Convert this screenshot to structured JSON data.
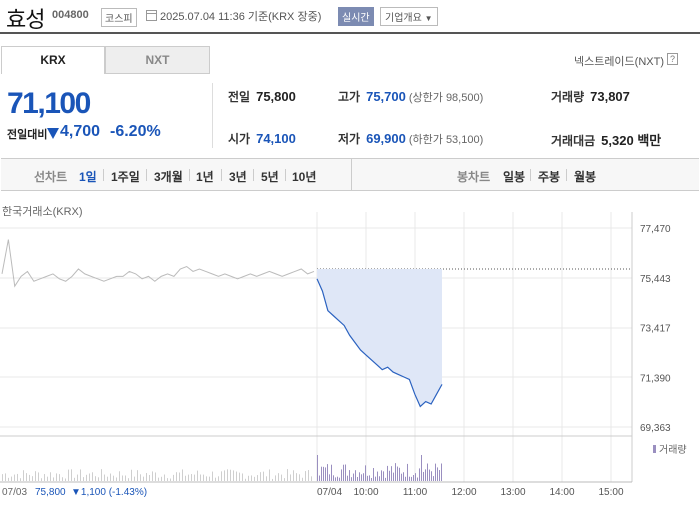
{
  "header": {
    "stock_name": "효성",
    "stock_code": "004800",
    "market": "코스피",
    "datetime": "2025.07.04 11:36 기준(KRX 장중)",
    "realtime_badge": "실시간",
    "company_button": "기업개요"
  },
  "tabs": [
    {
      "label": "KRX",
      "active": true
    },
    {
      "label": "NXT",
      "active": false
    }
  ],
  "nxt_link": "넥스트레이드(NXT)",
  "quote": {
    "price": "71,100",
    "change_label": "전일대비",
    "change": "4,700",
    "change_pct": "-6.20%"
  },
  "stats": {
    "prev_close": {
      "label": "전일",
      "value": "75,800"
    },
    "high": {
      "label": "고가",
      "value": "75,700",
      "sub": "(상한가 98,500)"
    },
    "volume": {
      "label": "거래량",
      "value": "73,807"
    },
    "open": {
      "label": "시가",
      "value": "74,100"
    },
    "low": {
      "label": "저가",
      "value": "69,900",
      "sub": "(하한가 53,100)"
    },
    "amount": {
      "label": "거래대금",
      "value": "5,320 백만"
    }
  },
  "period_bar": {
    "line_label": "선차트",
    "line_items": [
      "1일",
      "1주일",
      "3개월",
      "1년",
      "3년",
      "5년",
      "10년"
    ],
    "active": "1일",
    "bar_label": "봉차트",
    "bar_items": [
      "일봉",
      "주봉",
      "월봉"
    ]
  },
  "chart_data": {
    "type": "line",
    "exchange_label": "한국거래소(KRX)",
    "y_ticks": [
      "77,470",
      "75,443",
      "73,417",
      "71,390",
      "69,363"
    ],
    "ylim": [
      69363,
      77470
    ],
    "reference_price": 75800,
    "volume_label": "거래량",
    "x_ticks": [
      "07/03",
      "07/04",
      "10:00",
      "11:00",
      "12:00",
      "13:00",
      "14:00",
      "15:00"
    ],
    "footer_prev": "07/03",
    "footer_prev_close": "75,800",
    "footer_change": "▼1,100 (-1.43%)",
    "prev_day_series": [
      75600,
      77000,
      75100,
      75500,
      75700,
      75300,
      75400,
      75500,
      75600,
      75400,
      75300,
      75500,
      75800,
      75600,
      75500,
      75400,
      75300,
      75400,
      75500,
      75500,
      75700,
      75600,
      75400,
      75500,
      75300,
      75500,
      75600,
      75500,
      75800,
      75900,
      75700,
      75800,
      75700,
      75600,
      75500,
      75600,
      75500,
      75400,
      75500,
      75600,
      75500,
      75600,
      75700,
      75600,
      75500,
      75600,
      75700,
      75800,
      75600,
      75700
    ],
    "today_series": [
      75400,
      74900,
      74100,
      73900,
      73700,
      73500,
      73100,
      72800,
      72500,
      72300,
      72100,
      71900,
      71700,
      71800,
      71600,
      71500,
      71400,
      71300,
      70700,
      70200,
      70400,
      70300,
      70700,
      71100
    ]
  }
}
